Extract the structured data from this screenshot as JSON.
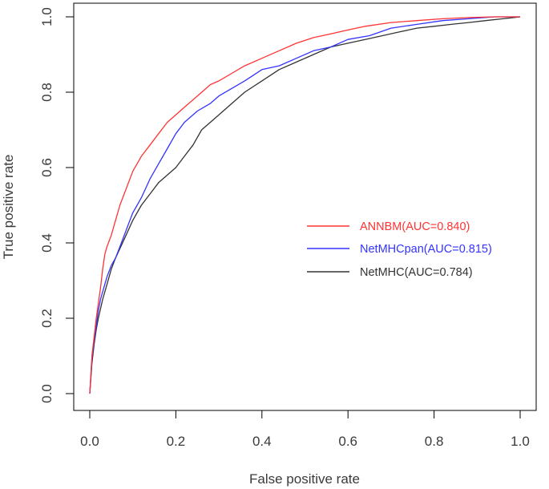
{
  "chart_data": {
    "type": "line",
    "title": "",
    "xlabel": "False positive rate",
    "ylabel": "True positive rate",
    "xlim": [
      0,
      1
    ],
    "ylim": [
      0,
      1
    ],
    "x_ticks": [
      "0.0",
      "0.2",
      "0.4",
      "0.6",
      "0.8",
      "1.0"
    ],
    "y_ticks": [
      "0.0",
      "0.2",
      "0.4",
      "0.6",
      "0.8",
      "1.0"
    ],
    "grid": false,
    "legend_position": "center-right",
    "series": [
      {
        "name": "ANNBM(AUC=0.840)",
        "color": "#ff3333",
        "x": [
          0,
          0.005,
          0.01,
          0.015,
          0.02,
          0.025,
          0.03,
          0.035,
          0.04,
          0.05,
          0.06,
          0.07,
          0.08,
          0.09,
          0.1,
          0.12,
          0.14,
          0.16,
          0.18,
          0.2,
          0.22,
          0.25,
          0.28,
          0.3,
          0.33,
          0.36,
          0.4,
          0.44,
          0.48,
          0.52,
          0.56,
          0.6,
          0.64,
          0.7,
          0.76,
          0.82,
          0.88,
          0.94,
          1.0
        ],
        "y": [
          0,
          0.1,
          0.15,
          0.2,
          0.24,
          0.28,
          0.33,
          0.37,
          0.39,
          0.42,
          0.46,
          0.5,
          0.53,
          0.56,
          0.59,
          0.63,
          0.66,
          0.69,
          0.72,
          0.74,
          0.76,
          0.79,
          0.82,
          0.83,
          0.85,
          0.87,
          0.89,
          0.91,
          0.93,
          0.945,
          0.955,
          0.965,
          0.975,
          0.985,
          0.99,
          0.995,
          0.998,
          1.0,
          1.0
        ]
      },
      {
        "name": "NetMHCpan(AUC=0.815)",
        "color": "#3333ff",
        "x": [
          0,
          0.005,
          0.01,
          0.015,
          0.02,
          0.025,
          0.03,
          0.04,
          0.05,
          0.06,
          0.07,
          0.08,
          0.09,
          0.1,
          0.11,
          0.12,
          0.14,
          0.16,
          0.18,
          0.2,
          0.22,
          0.25,
          0.28,
          0.3,
          0.33,
          0.36,
          0.4,
          0.44,
          0.48,
          0.52,
          0.56,
          0.6,
          0.65,
          0.7,
          0.76,
          0.82,
          0.88,
          0.94,
          1.0
        ],
        "y": [
          0,
          0.09,
          0.14,
          0.18,
          0.22,
          0.25,
          0.27,
          0.31,
          0.34,
          0.36,
          0.39,
          0.42,
          0.45,
          0.48,
          0.5,
          0.52,
          0.57,
          0.61,
          0.65,
          0.69,
          0.72,
          0.75,
          0.77,
          0.79,
          0.81,
          0.83,
          0.86,
          0.87,
          0.89,
          0.91,
          0.92,
          0.94,
          0.95,
          0.97,
          0.98,
          0.99,
          0.995,
          1.0,
          1.0
        ]
      },
      {
        "name": "NetMHC(AUC=0.784)",
        "color": "#333333",
        "x": [
          0,
          0.005,
          0.01,
          0.015,
          0.02,
          0.03,
          0.04,
          0.05,
          0.06,
          0.08,
          0.1,
          0.12,
          0.14,
          0.16,
          0.18,
          0.2,
          0.22,
          0.24,
          0.26,
          0.28,
          0.3,
          0.33,
          0.36,
          0.4,
          0.44,
          0.48,
          0.52,
          0.56,
          0.6,
          0.64,
          0.68,
          0.72,
          0.76,
          0.8,
          0.84,
          0.88,
          0.92,
          0.96,
          1.0
        ],
        "y": [
          0,
          0.08,
          0.13,
          0.17,
          0.2,
          0.25,
          0.29,
          0.33,
          0.36,
          0.41,
          0.46,
          0.5,
          0.53,
          0.56,
          0.58,
          0.6,
          0.63,
          0.66,
          0.7,
          0.72,
          0.74,
          0.77,
          0.8,
          0.83,
          0.86,
          0.88,
          0.9,
          0.92,
          0.93,
          0.94,
          0.95,
          0.96,
          0.97,
          0.975,
          0.98,
          0.985,
          0.99,
          0.995,
          1.0
        ]
      }
    ]
  }
}
